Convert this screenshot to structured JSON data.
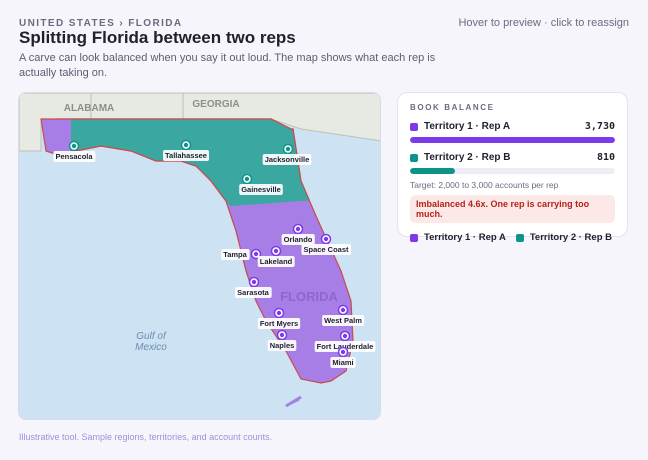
{
  "header": {
    "breadcrumb": "UNITED STATES › FLORIDA",
    "title": "Splitting Florida between two reps",
    "subtitle": "A carve can look balanced when you say it out loud. The map shows what each rep is actually taking on.",
    "hint": "Hover to preview · click to reassign"
  },
  "map": {
    "states": [
      "ALABAMA",
      "GEORGIA",
      "FLORIDA"
    ],
    "water": "Gulf of Mexico",
    "cities": [
      "Pensacola",
      "Tallahassee",
      "Jacksonville",
      "Gainesville",
      "Orlando",
      "Space Coast",
      "Tampa",
      "Lakeland",
      "Sarasota",
      "Fort Myers",
      "West Palm",
      "Naples",
      "Fort Lauderdale",
      "Miami"
    ]
  },
  "panel": {
    "title": "BOOK BALANCE",
    "reps": [
      {
        "name": "Territory 1 · Rep A",
        "value": 3730,
        "value_label": "3,730",
        "color": "#7c3aed"
      },
      {
        "name": "Territory 2 · Rep B",
        "value": 810,
        "value_label": "810",
        "color": "#0d9488"
      }
    ],
    "target": "Target: 2,000 to 3,000 accounts per rep",
    "warning": "Imbalanced 4.6x. One rep is carrying too much."
  },
  "footer": "Illustrative tool. Sample regions, territories, and account counts."
}
